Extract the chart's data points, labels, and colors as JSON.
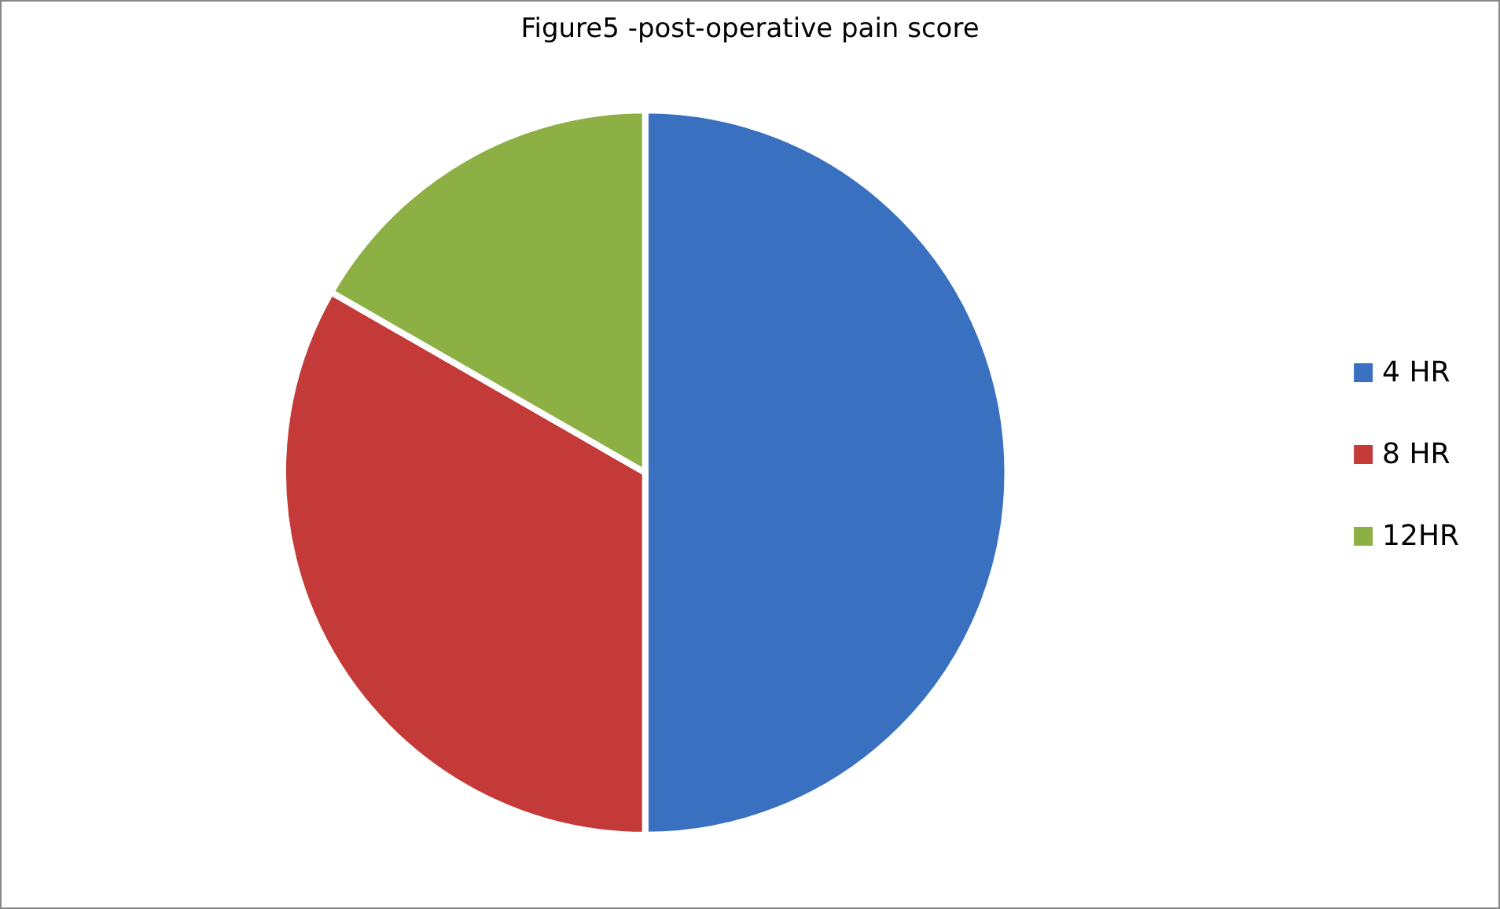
{
  "chart_data": {
    "type": "pie",
    "title": "Figure5 -post-operative pain score",
    "categories": [
      "4 HR",
      "8 HR",
      "12HR"
    ],
    "values": [
      50,
      33.3,
      16.7
    ],
    "colors": [
      "#3a70c0",
      "#c33a38",
      "#8cb043"
    ],
    "legend": "right"
  }
}
